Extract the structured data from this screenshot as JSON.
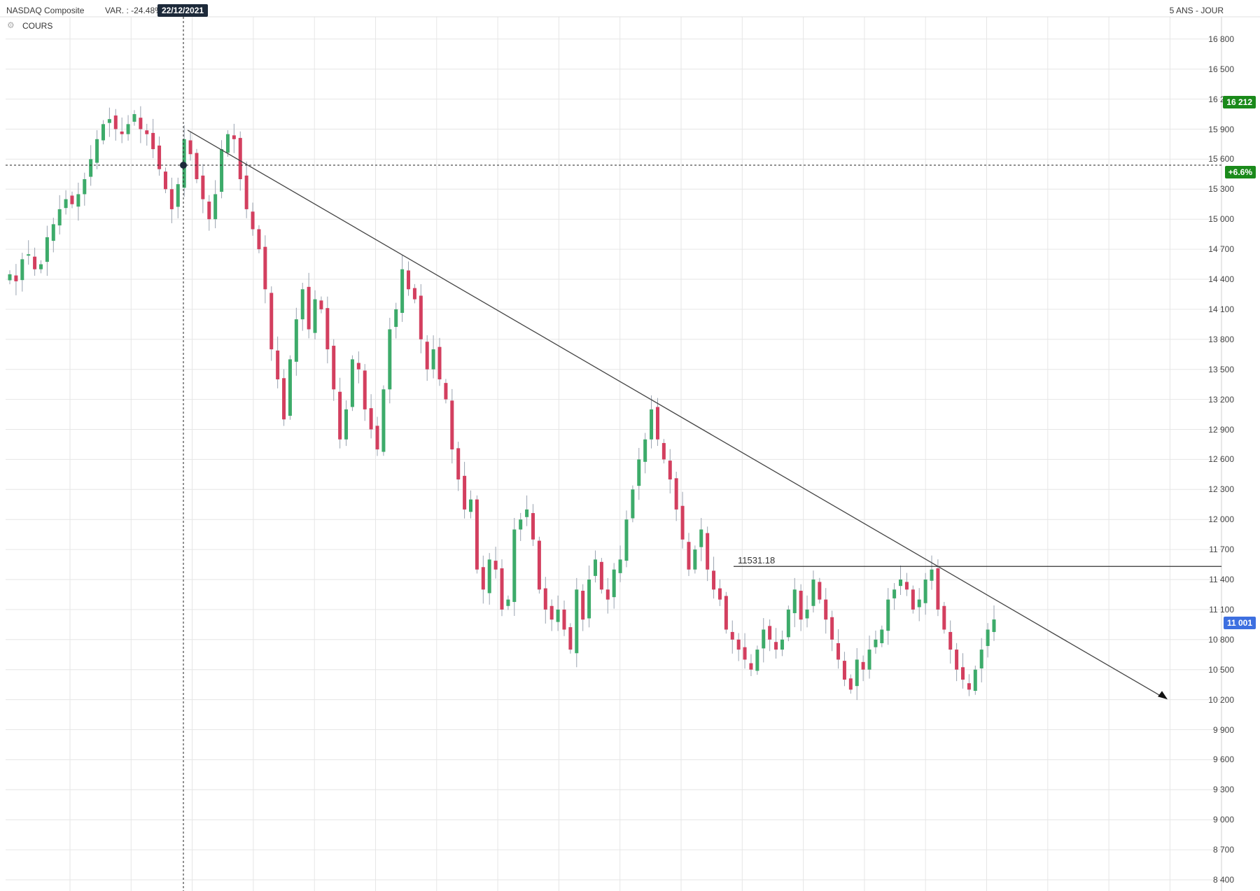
{
  "header": {
    "instrument": "NASDAQ Composite",
    "variation": "VAR. : -24.48%",
    "cursor_date": "22/12/2021",
    "period": "5 ANS - JOUR",
    "indicator_label": "COURS"
  },
  "price_tags": {
    "high": "16 212",
    "change": "+6.6%",
    "last": "11 001"
  },
  "colors": {
    "up": "#3dab6a",
    "down": "#d33f5f",
    "grid": "#e6e6e6",
    "high_tag": "#1a8a1a",
    "last_tag": "#3d6fe0",
    "badge": "#1d2a3a"
  },
  "annotations": {
    "support_label": "11531.18",
    "support_value": 11531.18
  },
  "chart_data": {
    "type": "candlestick",
    "y_ticks": [
      "16 800",
      "16 500",
      "16 200",
      "15 900",
      "15 600",
      "15 300",
      "15 000",
      "14 700",
      "14 400",
      "14 100",
      "13 800",
      "13 500",
      "13 200",
      "12 900",
      "12 600",
      "12 300",
      "12 000",
      "11 700",
      "11 400",
      "11 100",
      "10 800",
      "10 500",
      "10 200",
      "9 900",
      "9 600",
      "9 300",
      "9 000",
      "8 700",
      "8 400"
    ],
    "ylim": [
      8400,
      16800
    ],
    "cursor_price": 15540,
    "trendline": {
      "from": 15890,
      "to": 10230
    },
    "horizontal_line": 11531.18,
    "closes": [
      14450,
      14380,
      14600,
      14650,
      14500,
      14550,
      14820,
      14950,
      15100,
      15200,
      15150,
      15250,
      15400,
      15600,
      15800,
      15950,
      16000,
      15900,
      15850,
      15950,
      16050,
      15900,
      15850,
      15700,
      15500,
      15300,
      15100,
      15350,
      15800,
      15650,
      15400,
      15200,
      15000,
      15250,
      15700,
      15850,
      15800,
      15400,
      15100,
      14900,
      14700,
      14300,
      13700,
      13400,
      13000,
      13600,
      14000,
      14300,
      13900,
      14200,
      14100,
      13700,
      13300,
      12800,
      13100,
      13600,
      13500,
      13100,
      12900,
      12700,
      13300,
      13900,
      14100,
      14500,
      14300,
      14200,
      13800,
      13500,
      13700,
      13400,
      13200,
      12700,
      12400,
      12100,
      12200,
      11500,
      11300,
      11600,
      11500,
      11100,
      11200,
      11900,
      12000,
      12100,
      11800,
      11300,
      11100,
      11000,
      11100,
      10900,
      10700,
      11300,
      11000,
      11400,
      11600,
      11300,
      11200,
      11500,
      11600,
      12000,
      12300,
      12600,
      12800,
      13100,
      12800,
      12600,
      12400,
      12100,
      11800,
      11500,
      11700,
      11900,
      11500,
      11300,
      11200,
      10900,
      10800,
      10700,
      10600,
      10500,
      10700,
      10900,
      10800,
      10700,
      10800,
      11100,
      11300,
      11000,
      11100,
      11400,
      11200,
      11000,
      10800,
      10600,
      10400,
      10300,
      10600,
      10500,
      10700,
      10800,
      10900,
      11200,
      11300,
      11400,
      11300,
      11100,
      11200,
      11400,
      11500,
      11100,
      10900,
      10700,
      10500,
      10400,
      10300,
      10500,
      10700,
      10900,
      11001
    ]
  }
}
